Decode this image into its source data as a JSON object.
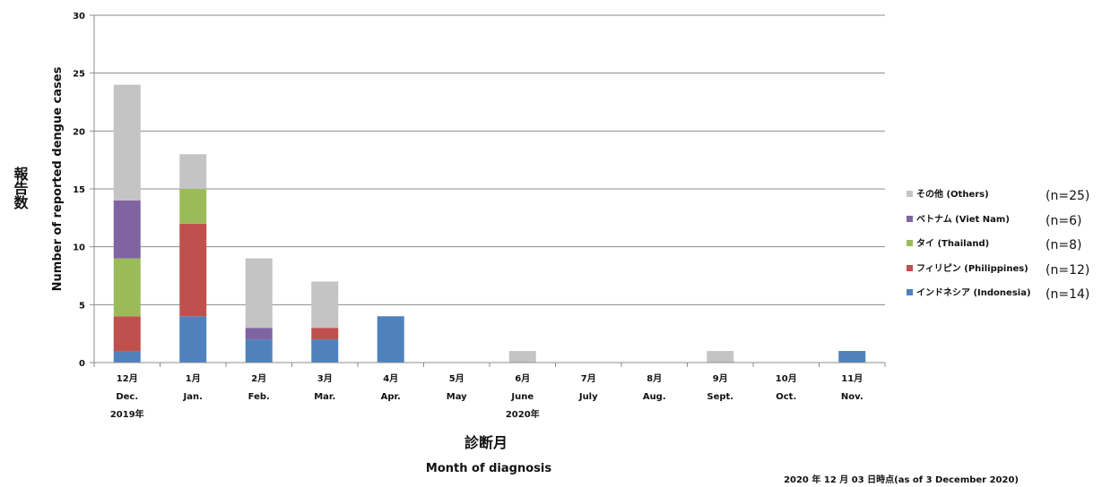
{
  "chart_data": {
    "type": "bar",
    "stacked": true,
    "categories": [
      {
        "jp": "12月",
        "en": "Dec."
      },
      {
        "jp": "1月",
        "en": "Jan."
      },
      {
        "jp": "2月",
        "en": "Feb."
      },
      {
        "jp": "3月",
        "en": "Mar."
      },
      {
        "jp": "4月",
        "en": "Apr."
      },
      {
        "jp": "5月",
        "en": "May"
      },
      {
        "jp": "6月",
        "en": "June"
      },
      {
        "jp": "7月",
        "en": "July"
      },
      {
        "jp": "8月",
        "en": "Aug."
      },
      {
        "jp": "9月",
        "en": "Sept."
      },
      {
        "jp": "10月",
        "en": "Oct."
      },
      {
        "jp": "11月",
        "en": "Nov."
      }
    ],
    "year_labels": [
      {
        "label": "2019年",
        "category_index": 0
      },
      {
        "label": "2020年",
        "category_index": 6
      }
    ],
    "series": [
      {
        "name": "インドネシア (Indonesia)",
        "count": "(n=14)",
        "color": "#4f81bd",
        "values": [
          1,
          4,
          2,
          2,
          4,
          0,
          0,
          0,
          0,
          0,
          0,
          1
        ]
      },
      {
        "name": "フィリピン (Philippines)",
        "count": "(n=12)",
        "color": "#c0504d",
        "values": [
          3,
          8,
          0,
          1,
          0,
          0,
          0,
          0,
          0,
          0,
          0,
          0
        ]
      },
      {
        "name": "タイ (Thailand)",
        "count": "(n=8)",
        "color": "#9bbb59",
        "values": [
          5,
          3,
          0,
          0,
          0,
          0,
          0,
          0,
          0,
          0,
          0,
          0
        ]
      },
      {
        "name": "ベトナム (Viet Nam)",
        "count": "(n=6)",
        "color": "#8064a2",
        "values": [
          5,
          0,
          1,
          0,
          0,
          0,
          0,
          0,
          0,
          0,
          0,
          0
        ]
      },
      {
        "name": "その他 (Others)",
        "count": "(n=25)",
        "color": "#c4c4c4",
        "values": [
          10,
          3,
          6,
          4,
          0,
          0,
          1,
          0,
          0,
          1,
          0,
          0
        ]
      }
    ],
    "ylim": [
      0,
      30
    ],
    "yticks": [
      0,
      5,
      10,
      15,
      20,
      25,
      30
    ],
    "ylabel_jp": "報告数",
    "ylabel_en": "Number of reported dengue cases",
    "xlabel_jp": "診断月",
    "xlabel_en": "Month of diagnosis",
    "legend_position": "right",
    "grid": "horizontal",
    "note": "2020 年 12 月 03 日時点(as of 3 December 2020)"
  }
}
